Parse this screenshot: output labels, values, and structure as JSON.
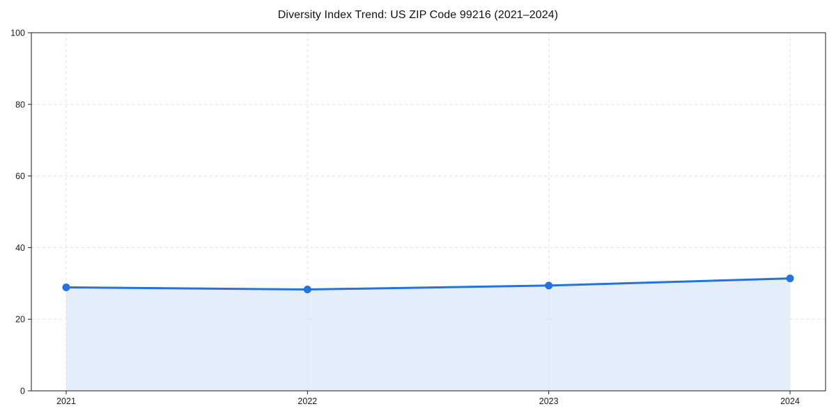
{
  "chart_data": {
    "type": "line",
    "title": "Diversity Index Trend: US ZIP Code 99216 (2021–2024)",
    "categories": [
      "2021",
      "2022",
      "2023",
      "2024"
    ],
    "series": [
      {
        "name": "Diversity Index",
        "values": [
          28.9,
          28.3,
          29.4,
          31.4
        ]
      }
    ],
    "xlabel": "",
    "ylabel": "",
    "ylim": [
      0,
      100
    ],
    "yticks": [
      0,
      20,
      40,
      60,
      80,
      100
    ],
    "grid": true,
    "grid_style": "dashed",
    "legend_visible": false,
    "marker": "circle",
    "style": {
      "line_color": "#2272e0",
      "marker_color": "#2272e0",
      "fill_color": "#2272e0",
      "fill_opacity": 0.12,
      "grid_color": "#e0e0e0",
      "spine_color": "#1a1a1a",
      "tick_label_color": "#1a1a1a",
      "title_color": "#111111",
      "background_color": "#ffffff"
    }
  }
}
